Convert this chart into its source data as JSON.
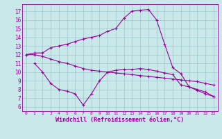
{
  "line1_x": [
    0,
    1,
    2,
    3,
    4,
    5,
    6,
    7,
    8,
    9,
    10,
    11,
    12,
    13,
    14,
    15,
    16,
    17,
    18,
    19,
    20,
    21,
    22,
    23
  ],
  "line1_y": [
    12.0,
    12.2,
    12.2,
    12.8,
    13.0,
    13.2,
    13.5,
    13.8,
    14.0,
    14.2,
    14.7,
    15.0,
    16.2,
    17.0,
    17.1,
    17.2,
    16.0,
    13.2,
    10.5,
    9.8,
    8.3,
    7.9,
    7.5,
    7.2
  ],
  "line2_x": [
    1,
    2,
    3,
    4,
    5,
    6,
    7,
    8,
    9,
    10,
    11,
    12,
    13,
    14,
    15,
    16,
    17,
    18,
    19,
    20,
    21,
    22,
    23
  ],
  "line2_y": [
    11.0,
    10.0,
    8.7,
    8.0,
    7.8,
    7.5,
    6.2,
    7.5,
    9.0,
    10.0,
    10.2,
    10.3,
    10.3,
    10.4,
    10.3,
    10.1,
    9.9,
    9.7,
    8.5,
    8.3,
    8.0,
    7.7,
    7.2
  ],
  "line3_x": [
    0,
    1,
    2,
    3,
    4,
    5,
    6,
    7,
    8,
    9,
    10,
    11,
    12,
    13,
    14,
    15,
    16,
    17,
    18,
    19,
    20,
    21,
    22,
    23
  ],
  "line3_y": [
    12.0,
    12.0,
    11.8,
    11.5,
    11.2,
    11.0,
    10.7,
    10.4,
    10.2,
    10.1,
    10.0,
    9.9,
    9.8,
    9.7,
    9.6,
    9.5,
    9.4,
    9.3,
    9.2,
    9.1,
    9.0,
    8.9,
    8.7,
    8.5
  ],
  "color": "#990099",
  "bg_color": "#c8e8ea",
  "grid_color": "#a0c8cc",
  "xlim": [
    -0.5,
    23.5
  ],
  "ylim": [
    5.5,
    17.8
  ],
  "yticks": [
    6,
    7,
    8,
    9,
    10,
    11,
    12,
    13,
    14,
    15,
    16,
    17
  ],
  "xticks": [
    0,
    1,
    2,
    3,
    4,
    5,
    6,
    7,
    8,
    9,
    10,
    11,
    12,
    13,
    14,
    15,
    16,
    17,
    18,
    19,
    20,
    21,
    22,
    23
  ],
  "xlabel": "Windchill (Refroidissement éolien,°C)",
  "xlabel_fontsize": 6.0,
  "tick_fontsize": 5.5
}
